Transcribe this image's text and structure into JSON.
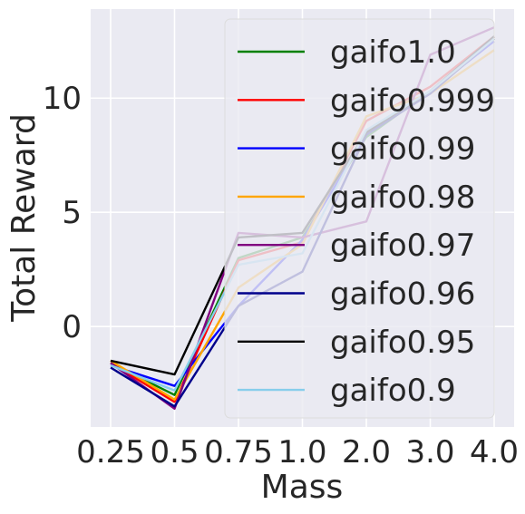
{
  "chart_data": {
    "type": "line",
    "xlabel": "Mass",
    "ylabel": "Total Reward",
    "categories": [
      "0.25",
      "0.5",
      "0.75",
      "1.0",
      "2.0",
      "3.0",
      "4.0"
    ],
    "y_ticks": [
      "0",
      "5",
      "10"
    ],
    "ylim": [
      -4.4,
      13.9
    ],
    "grid": true,
    "legend_position": "upper-right",
    "series": [
      {
        "name": "gaifo1.0",
        "color": "#008000",
        "values": [
          -1.6,
          -3.0,
          3.0,
          3.9,
          8.3,
          10.3,
          12.6
        ]
      },
      {
        "name": "gaifo0.999",
        "color": "#ff0000",
        "values": [
          -1.6,
          -3.3,
          2.9,
          3.7,
          9.0,
          10.5,
          12.7
        ]
      },
      {
        "name": "gaifo0.99",
        "color": "#0000ff",
        "values": [
          -1.7,
          -2.6,
          0.9,
          3.8,
          8.4,
          10.3,
          12.5
        ]
      },
      {
        "name": "gaifo0.98",
        "color": "#ffa500",
        "values": [
          -1.5,
          -3.2,
          1.7,
          3.6,
          9.2,
          10.2,
          12.1
        ]
      },
      {
        "name": "gaifo0.97",
        "color": "#800080",
        "values": [
          -1.6,
          -3.6,
          4.1,
          3.9,
          4.6,
          11.9,
          13.1
        ]
      },
      {
        "name": "gaifo0.96",
        "color": "#00008b",
        "values": [
          -1.8,
          -3.5,
          0.9,
          2.4,
          8.4,
          10.2,
          12.6
        ]
      },
      {
        "name": "gaifo0.95",
        "color": "#000000",
        "values": [
          -1.5,
          -2.1,
          3.9,
          4.1,
          8.5,
          10.3,
          12.7
        ]
      },
      {
        "name": "gaifo0.9",
        "color": "#87ceeb",
        "values": [
          -1.7,
          -2.8,
          2.7,
          3.2,
          8.6,
          10.3,
          12.6
        ]
      }
    ]
  }
}
